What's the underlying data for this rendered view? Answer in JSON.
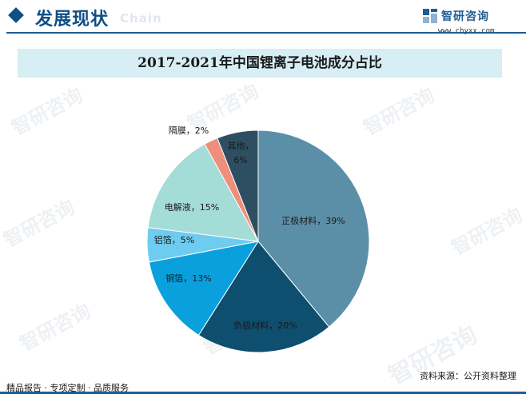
{
  "header": {
    "section_title": "发展现状",
    "section_title_ghost": "Chain",
    "brand_name": "智研咨询",
    "brand_url": "www.chyxx.com"
  },
  "watermark": {
    "text": "智研咨询"
  },
  "chart_data": {
    "type": "pie",
    "title": "2017-2021年中国锂离子电池成分占比",
    "start_angle_deg": 0,
    "direction": "clockwise",
    "slices": [
      {
        "label": "正极材料",
        "value": 39,
        "display": "正极材料，39%",
        "color": "#5b8fa8",
        "label_inside": true
      },
      {
        "label": "负极材料",
        "value": 20,
        "display": "负极材料，20%",
        "color": "#0e4e6e",
        "label_inside": true
      },
      {
        "label": "铜箔",
        "value": 13,
        "display": "铜箔，13%",
        "color": "#0aa0dd",
        "label_inside": true
      },
      {
        "label": "铝箔",
        "value": 5,
        "display": "铝箔，5%",
        "color": "#6dccf0",
        "label_inside": true
      },
      {
        "label": "电解液",
        "value": 15,
        "display": "电解液，15%",
        "color": "#a4dcd7",
        "label_inside": true
      },
      {
        "label": "隔膜",
        "value": 2,
        "display": "隔膜，2%",
        "color": "#ef8e7c",
        "label_inside": false
      },
      {
        "label": "其他",
        "value": 6,
        "display_lines": [
          "其他，",
          "6%"
        ],
        "color": "#2e4f62",
        "label_inside": true
      }
    ]
  },
  "footer": {
    "tagline": "精品报告 · 专项定制 · 品质服务",
    "source": "资料来源：公开资料整理"
  }
}
